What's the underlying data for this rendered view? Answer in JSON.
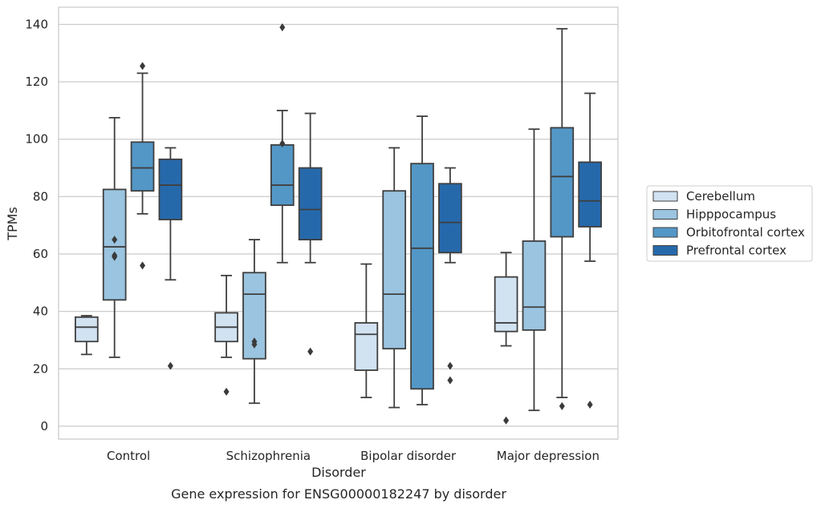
{
  "chart_data": {
    "type": "box",
    "title": "",
    "caption": "Gene expression for ENSG00000182247 by disorder",
    "xlabel": "Disorder",
    "ylabel": "TPMs",
    "ylim": [
      -4.5,
      146
    ],
    "yticks": [
      0,
      20,
      40,
      60,
      80,
      100,
      120,
      140
    ],
    "grid": "horizontal",
    "legend_position": "right",
    "categories": [
      "Control",
      "Schizophrenia",
      "Bipolar disorder",
      "Major depression"
    ],
    "series": [
      {
        "name": "Cerebellum",
        "color": "#d1e2f1",
        "boxes": [
          {
            "whislo": 25,
            "q1": 29.5,
            "med": 34.5,
            "q3": 38,
            "whishi": 38.5,
            "fliers": []
          },
          {
            "whislo": 24,
            "q1": 29.5,
            "med": 34.5,
            "q3": 39.5,
            "whishi": 52.5,
            "fliers": [
              12
            ]
          },
          {
            "whislo": 10,
            "q1": 19.5,
            "med": 32,
            "q3": 36,
            "whishi": 56.5,
            "fliers": []
          },
          {
            "whislo": 28,
            "q1": 33,
            "med": 36,
            "q3": 52,
            "whishi": 60.5,
            "fliers": [
              2
            ]
          }
        ]
      },
      {
        "name": "Hipppocampus",
        "color": "#9ac4e0",
        "boxes": [
          {
            "whislo": 24,
            "q1": 44,
            "med": 62.5,
            "q3": 82.5,
            "whishi": 107.5,
            "fliers": [
              59,
              59.5,
              65
            ]
          },
          {
            "whislo": 8,
            "q1": 23.5,
            "med": 46,
            "q3": 53.5,
            "whishi": 65,
            "fliers": [
              28.5,
              29.5
            ]
          },
          {
            "whislo": 6.5,
            "q1": 27,
            "med": 46,
            "q3": 82,
            "whishi": 97,
            "fliers": []
          },
          {
            "whislo": 5.5,
            "q1": 33.5,
            "med": 41.5,
            "q3": 64.5,
            "whishi": 103.5,
            "fliers": []
          }
        ]
      },
      {
        "name": "Orbitofrontal cortex",
        "color": "#5397c7",
        "boxes": [
          {
            "whislo": 74,
            "q1": 82,
            "med": 90,
            "q3": 99,
            "whishi": 123,
            "fliers": [
              56,
              125.5
            ]
          },
          {
            "whislo": 57,
            "q1": 77,
            "med": 84,
            "q3": 98,
            "whishi": 110,
            "fliers": [
              98.5,
              139
            ]
          },
          {
            "whislo": 7.5,
            "q1": 13,
            "med": 62,
            "q3": 91.5,
            "whishi": 108,
            "fliers": []
          },
          {
            "whislo": 10,
            "q1": 66,
            "med": 87,
            "q3": 104,
            "whishi": 138.5,
            "fliers": [
              7
            ]
          }
        ]
      },
      {
        "name": "Prefrontal cortex",
        "color": "#2669ab",
        "boxes": [
          {
            "whislo": 51,
            "q1": 72,
            "med": 84,
            "q3": 93,
            "whishi": 97,
            "fliers": [
              21
            ]
          },
          {
            "whislo": 57,
            "q1": 65,
            "med": 75.5,
            "q3": 90,
            "whishi": 109,
            "fliers": [
              26
            ]
          },
          {
            "whislo": 57,
            "q1": 60.5,
            "med": 71,
            "q3": 84.5,
            "whishi": 90,
            "fliers": [
              16,
              21
            ]
          },
          {
            "whislo": 57.5,
            "q1": 69.5,
            "med": 78.5,
            "q3": 92,
            "whishi": 116,
            "fliers": [
              7.5
            ]
          }
        ]
      }
    ]
  }
}
